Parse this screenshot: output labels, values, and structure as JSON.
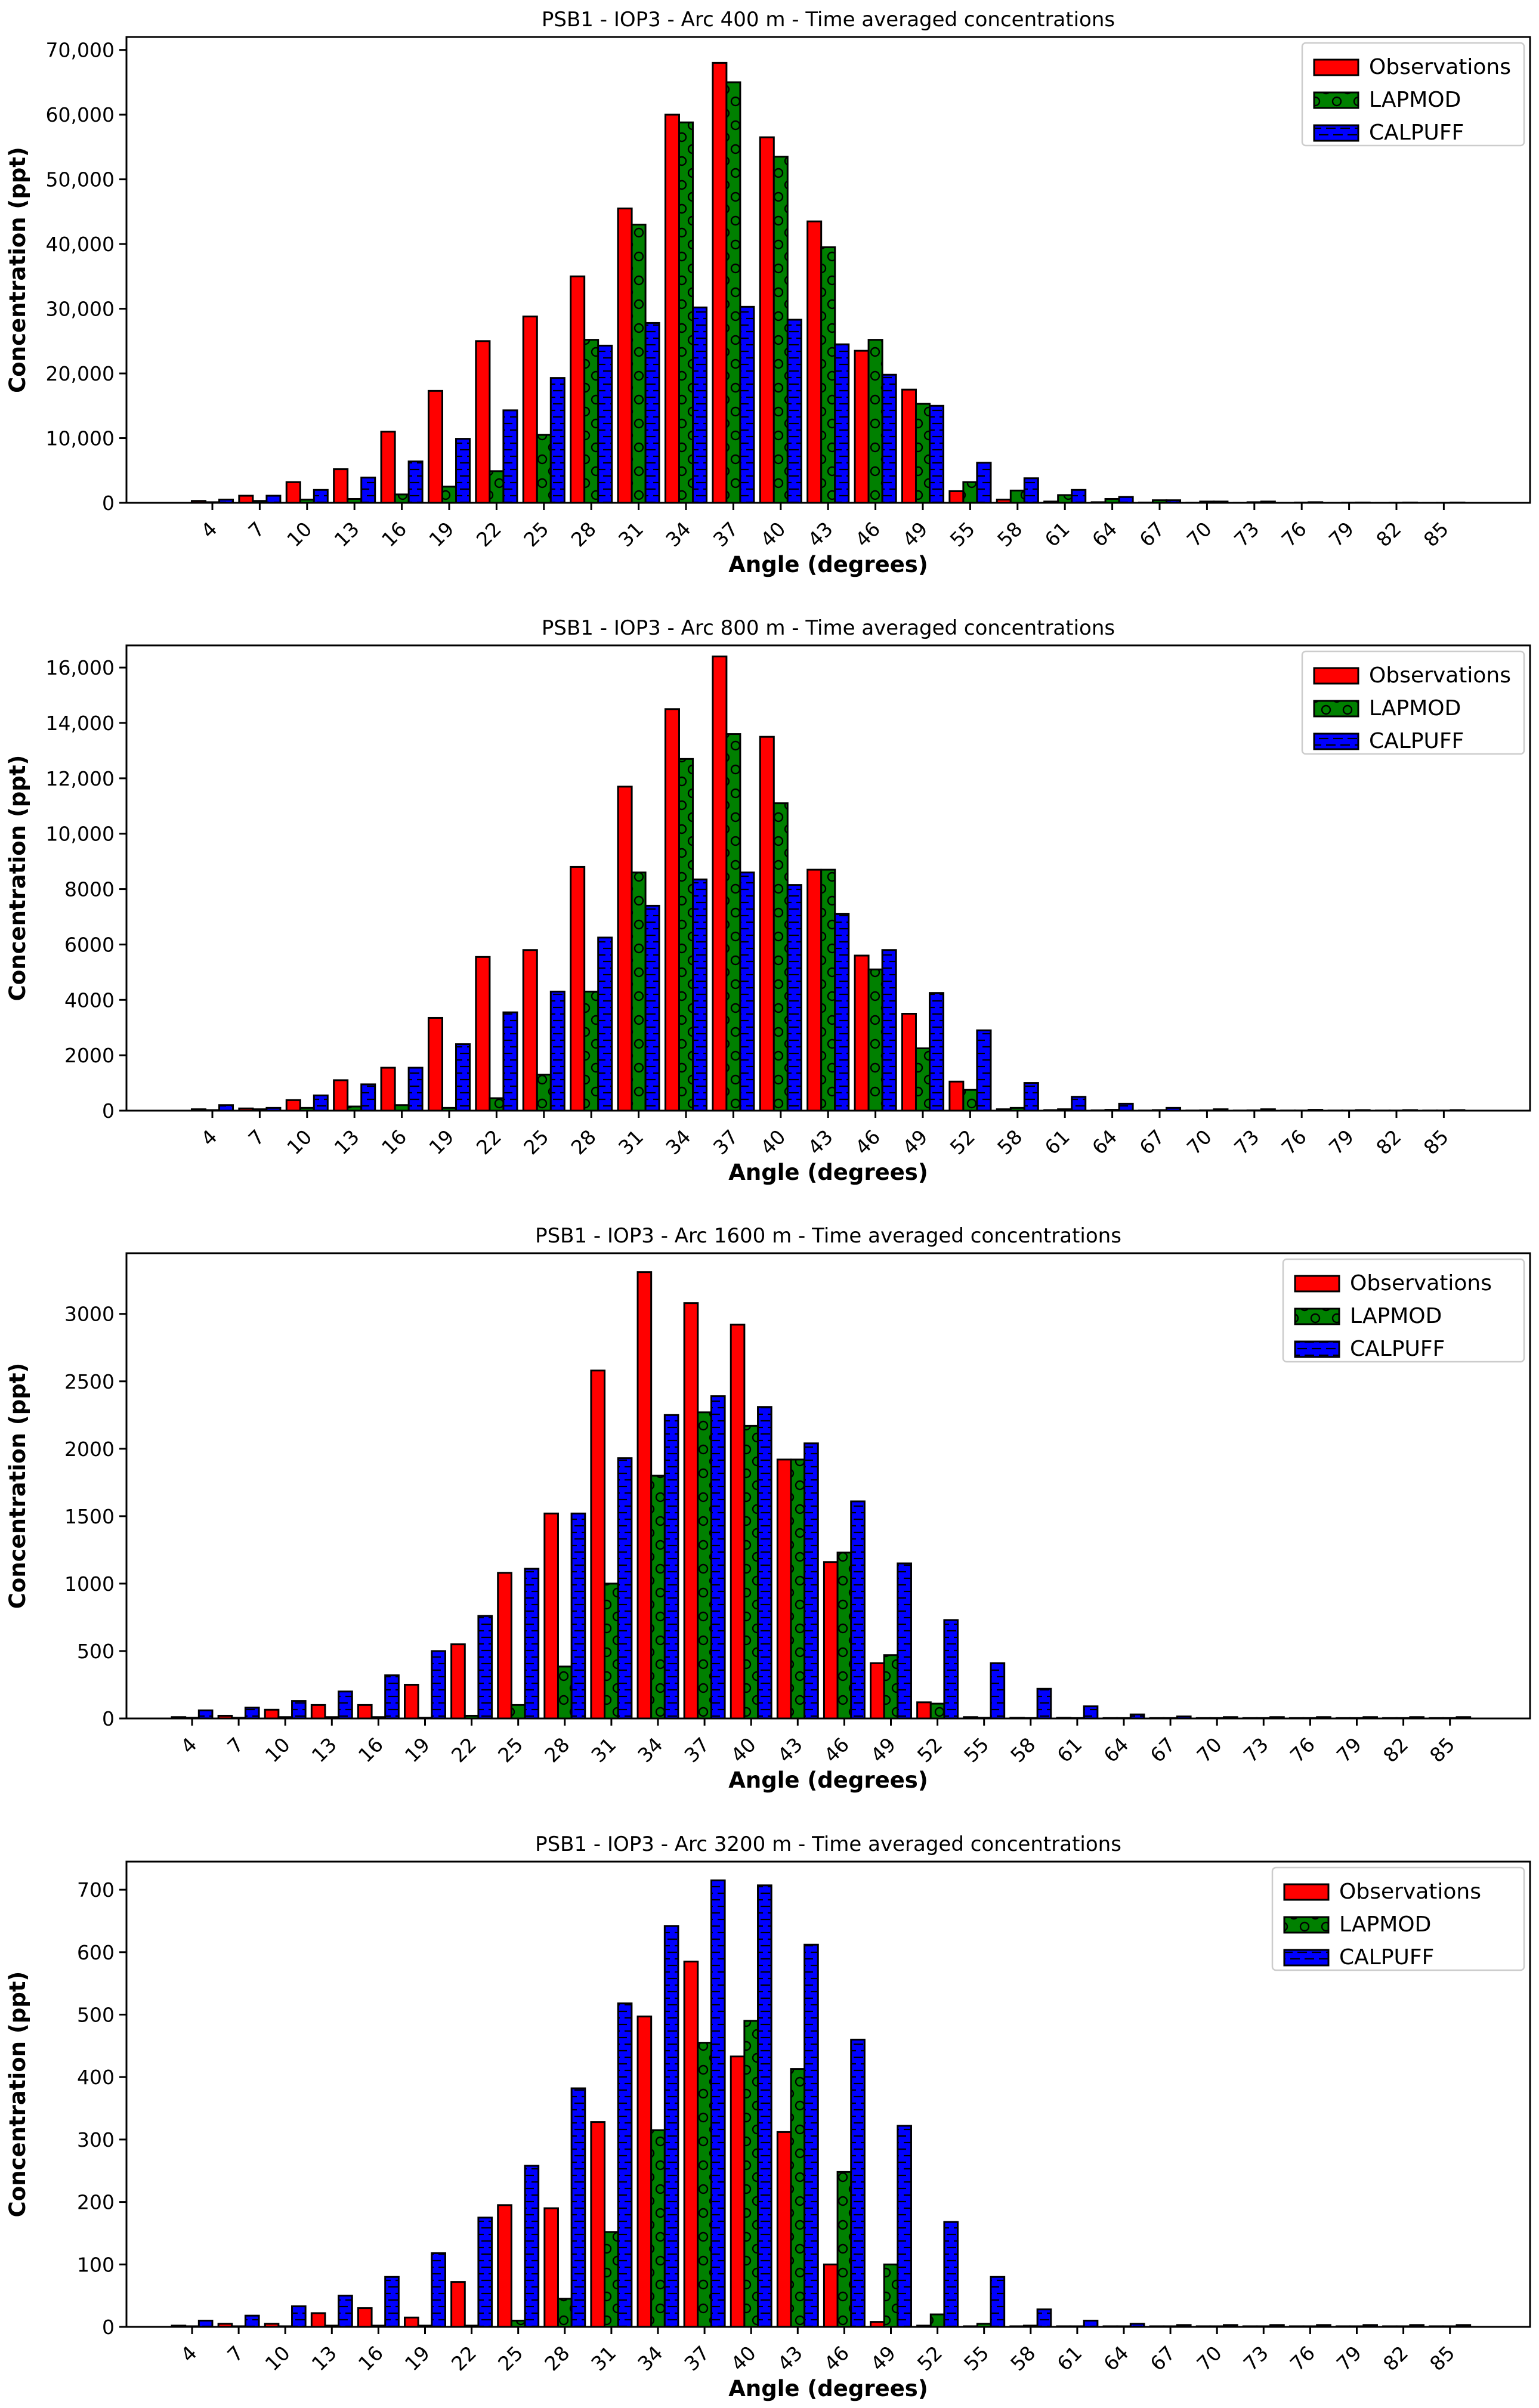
{
  "colors": {
    "observations": "#ff0000",
    "lapmod": "#008000",
    "calpuff": "#0000ff",
    "edge": "#000000"
  },
  "chart_data": [
    {
      "type": "bar",
      "title": "PSB1 - IOP3 - Arc 400 m - Time averaged concentrations",
      "xlabel": "Angle (degrees)",
      "ylabel": "Concentration (ppt)",
      "ylim": [
        0,
        72000
      ],
      "yticks": [
        0,
        10000,
        20000,
        30000,
        40000,
        50000,
        60000,
        70000
      ],
      "ytick_labels": [
        "0",
        "10,000",
        "20,000",
        "30,000",
        "40,000",
        "50,000",
        "60,000",
        "70,000"
      ],
      "legend": "top-right",
      "categories": [
        "4",
        "7",
        "10",
        "13",
        "16",
        "19",
        "22",
        "25",
        "28",
        "31",
        "34",
        "37",
        "40",
        "43",
        "46",
        "49",
        "55",
        "58",
        "61",
        "64",
        "67",
        "70",
        "73",
        "76",
        "79",
        "82",
        "85"
      ],
      "series": [
        {
          "name": "Observations",
          "values": [
            300,
            1100,
            3200,
            5200,
            11000,
            17300,
            25000,
            28800,
            35000,
            45500,
            60000,
            68000,
            56500,
            43500,
            23500,
            17500,
            1800,
            500,
            200,
            100,
            50,
            20,
            10,
            5,
            5,
            5,
            5
          ]
        },
        {
          "name": "LAPMOD",
          "values": [
            100,
            300,
            500,
            600,
            1300,
            2500,
            4900,
            10500,
            25200,
            43000,
            58800,
            65000,
            53500,
            39500,
            25200,
            15300,
            3200,
            1900,
            1200,
            600,
            400,
            200,
            100,
            50,
            30,
            20,
            10
          ]
        },
        {
          "name": "CALPUFF",
          "values": [
            500,
            1100,
            2000,
            3900,
            6400,
            9900,
            14300,
            19300,
            24300,
            27800,
            30200,
            30300,
            28300,
            24500,
            19800,
            15000,
            6200,
            3800,
            2000,
            900,
            400,
            200,
            200,
            100,
            50,
            50,
            50
          ]
        }
      ]
    },
    {
      "type": "bar",
      "title": "PSB1 - IOP3 - Arc 800 m - Time averaged concentrations",
      "xlabel": "Angle (degrees)",
      "ylabel": "Concentration (ppt)",
      "ylim": [
        0,
        16800
      ],
      "yticks": [
        0,
        2000,
        4000,
        6000,
        8000,
        10000,
        12000,
        14000,
        16000
      ],
      "ytick_labels": [
        "0",
        "2000",
        "4000",
        "6000",
        "8000",
        "10,000",
        "12,000",
        "14,000",
        "16,000"
      ],
      "legend": "top-right",
      "categories": [
        "4",
        "7",
        "10",
        "13",
        "16",
        "19",
        "22",
        "25",
        "28",
        "31",
        "34",
        "37",
        "40",
        "43",
        "46",
        "49",
        "52",
        "58",
        "61",
        "64",
        "67",
        "70",
        "73",
        "76",
        "79",
        "82",
        "85"
      ],
      "series": [
        {
          "name": "Observations",
          "values": [
            50,
            80,
            380,
            1100,
            1550,
            3350,
            5550,
            5800,
            8800,
            11700,
            14500,
            16400,
            13500,
            8700,
            5600,
            3500,
            1050,
            50,
            20,
            10,
            5,
            5,
            5,
            5,
            5,
            5,
            5
          ]
        },
        {
          "name": "LAPMOD",
          "values": [
            20,
            50,
            100,
            150,
            200,
            100,
            450,
            1300,
            4300,
            8600,
            12700,
            13600,
            11100,
            8700,
            5100,
            2250,
            750,
            100,
            50,
            30,
            20,
            10,
            10,
            5,
            5,
            5,
            5
          ]
        },
        {
          "name": "CALPUFF",
          "values": [
            200,
            100,
            550,
            950,
            1550,
            2400,
            3550,
            4300,
            6250,
            7400,
            8350,
            8600,
            8150,
            7100,
            5800,
            4250,
            2900,
            1000,
            500,
            250,
            100,
            50,
            50,
            30,
            20,
            20,
            20
          ]
        }
      ]
    },
    {
      "type": "bar",
      "title": "PSB1 - IOP3 - Arc 1600 m - Time averaged concentrations",
      "xlabel": "Angle (degrees)",
      "ylabel": "Concentration (ppt)",
      "ylim": [
        0,
        3450
      ],
      "yticks": [
        0,
        500,
        1000,
        1500,
        2000,
        2500,
        3000
      ],
      "ytick_labels": [
        "0",
        "500",
        "1000",
        "1500",
        "2000",
        "2500",
        "3000"
      ],
      "legend": "top-right",
      "categories": [
        "4",
        "7",
        "10",
        "13",
        "16",
        "19",
        "22",
        "25",
        "28",
        "31",
        "34",
        "37",
        "40",
        "43",
        "46",
        "49",
        "52",
        "55",
        "58",
        "61",
        "64",
        "67",
        "70",
        "73",
        "76",
        "79",
        "82",
        "85"
      ],
      "series": [
        {
          "name": "Observations",
          "values": [
            10,
            20,
            65,
            100,
            100,
            250,
            550,
            1080,
            1520,
            2580,
            3310,
            3080,
            2920,
            1920,
            1160,
            410,
            120,
            10,
            5,
            5,
            3,
            3,
            3,
            3,
            3,
            3,
            3,
            3
          ]
        },
        {
          "name": "LAPMOD",
          "values": [
            5,
            5,
            10,
            10,
            10,
            5,
            20,
            100,
            385,
            1000,
            1800,
            2270,
            2170,
            1920,
            1230,
            470,
            110,
            5,
            3,
            3,
            3,
            3,
            3,
            3,
            3,
            3,
            3,
            3
          ]
        },
        {
          "name": "CALPUFF",
          "values": [
            60,
            80,
            130,
            200,
            320,
            500,
            760,
            1110,
            1520,
            1930,
            2250,
            2390,
            2310,
            2040,
            1610,
            1150,
            730,
            410,
            220,
            90,
            30,
            15,
            10,
            10,
            10,
            10,
            10,
            10
          ]
        }
      ]
    },
    {
      "type": "bar",
      "title": "PSB1 - IOP3 - Arc 3200 m - Time averaged concentrations",
      "xlabel": "Angle (degrees)",
      "ylabel": "Concentration (ppt)",
      "ylim": [
        0,
        745
      ],
      "yticks": [
        0,
        100,
        200,
        300,
        400,
        500,
        600,
        700
      ],
      "ytick_labels": [
        "0",
        "100",
        "200",
        "300",
        "400",
        "500",
        "600",
        "700"
      ],
      "legend": "top-right",
      "categories": [
        "4",
        "7",
        "10",
        "13",
        "16",
        "19",
        "22",
        "25",
        "28",
        "31",
        "34",
        "37",
        "40",
        "43",
        "46",
        "49",
        "52",
        "55",
        "58",
        "61",
        "64",
        "67",
        "70",
        "73",
        "76",
        "79",
        "82",
        "85"
      ],
      "series": [
        {
          "name": "Observations",
          "values": [
            2,
            5,
            5,
            22,
            30,
            15,
            72,
            195,
            190,
            328,
            497,
            585,
            433,
            312,
            100,
            8,
            2,
            1,
            1,
            1,
            1,
            1,
            1,
            1,
            1,
            1,
            1,
            1
          ]
        },
        {
          "name": "LAPMOD",
          "values": [
            1,
            1,
            1,
            2,
            2,
            2,
            2,
            10,
            45,
            152,
            315,
            455,
            490,
            413,
            248,
            100,
            20,
            5,
            2,
            1,
            1,
            1,
            1,
            1,
            1,
            1,
            1,
            1
          ]
        },
        {
          "name": "CALPUFF",
          "values": [
            10,
            18,
            33,
            50,
            80,
            118,
            175,
            258,
            382,
            518,
            642,
            715,
            707,
            612,
            460,
            322,
            168,
            80,
            28,
            10,
            5,
            3,
            3,
            3,
            3,
            3,
            3,
            3
          ]
        }
      ]
    }
  ]
}
